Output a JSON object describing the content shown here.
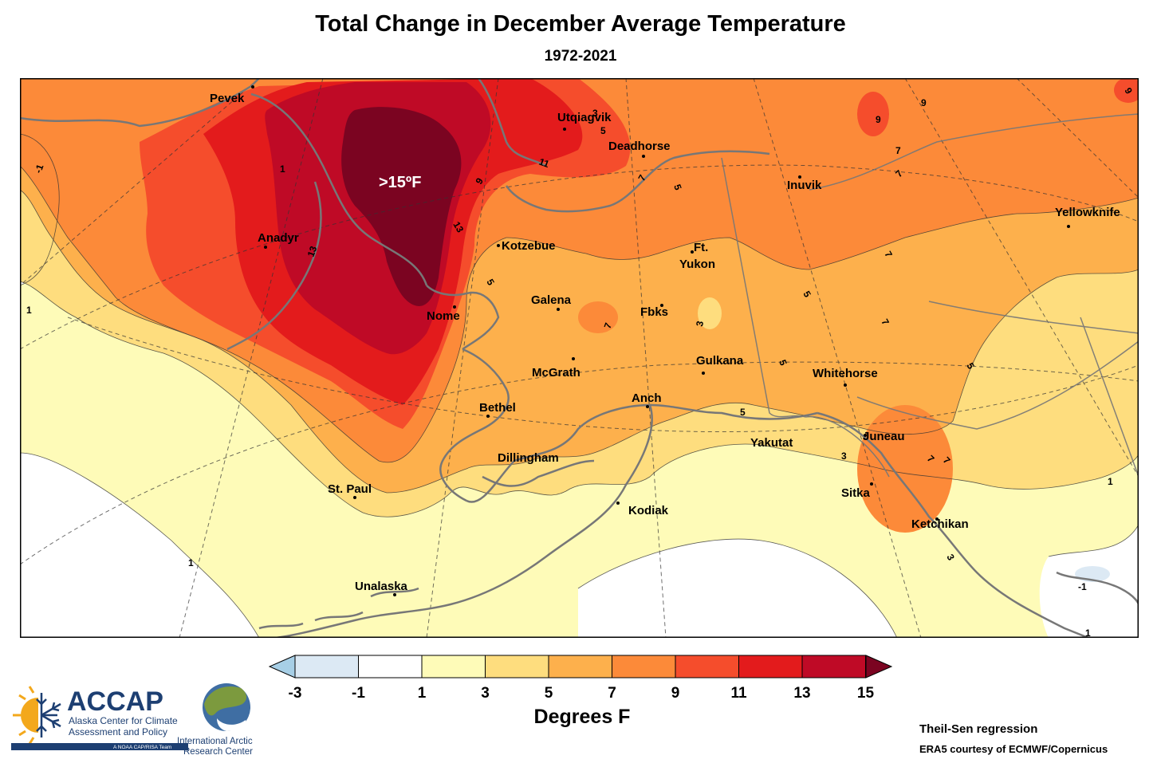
{
  "title": "Total Change in December Average Temperature",
  "subtitle": "1972-2021",
  "peak_label": ">15ºF",
  "cities": [
    {
      "id": "pevek",
      "name": "Pevek"
    },
    {
      "id": "utqiagvik",
      "name": "Utqiagvik"
    },
    {
      "id": "deadhorse",
      "name": "Deadhorse"
    },
    {
      "id": "inuvik",
      "name": "Inuvik"
    },
    {
      "id": "yellowknife",
      "name": "Yellowknife"
    },
    {
      "id": "anadyr",
      "name": "Anadyr"
    },
    {
      "id": "kotzebue",
      "name": "Kotzebue"
    },
    {
      "id": "ft",
      "name": "Ft."
    },
    {
      "id": "yukon",
      "name": "Yukon"
    },
    {
      "id": "galena",
      "name": "Galena"
    },
    {
      "id": "fbks",
      "name": "Fbks"
    },
    {
      "id": "nome",
      "name": "Nome"
    },
    {
      "id": "gulkana",
      "name": "Gulkana"
    },
    {
      "id": "whitehorse",
      "name": "Whitehorse"
    },
    {
      "id": "mcgrath",
      "name": "McGrath"
    },
    {
      "id": "anch",
      "name": "Anch"
    },
    {
      "id": "bethel",
      "name": "Bethel"
    },
    {
      "id": "yakutat",
      "name": "Yakutat"
    },
    {
      "id": "juneau",
      "name": "Juneau"
    },
    {
      "id": "dillingham",
      "name": "Dillingham"
    },
    {
      "id": "stpaul",
      "name": "St. Paul"
    },
    {
      "id": "sitka",
      "name": "Sitka"
    },
    {
      "id": "kodiak",
      "name": "Kodiak"
    },
    {
      "id": "ketchikan",
      "name": "Ketchikan"
    },
    {
      "id": "unalaska",
      "name": "Unalaska"
    }
  ],
  "contour_labels": [
    "-1",
    "1",
    "13",
    "9",
    "13",
    "11",
    "7",
    "5",
    "3",
    "5",
    "7",
    "7",
    "5",
    "5",
    "3",
    "7",
    "5",
    "5",
    "7",
    "5",
    "9",
    "9",
    "7",
    "9",
    "7",
    "7",
    "3",
    "1",
    "1",
    "-1",
    "1",
    "1",
    "3"
  ],
  "legend": {
    "ticks": [
      "-3",
      "-1",
      "1",
      "3",
      "5",
      "7",
      "9",
      "11",
      "13",
      "15"
    ],
    "bin_colors": [
      "#dce9f4",
      "#ffffff",
      "#fefbb8",
      "#fedd7e",
      "#fdb04c",
      "#fc8a39",
      "#f54d2c",
      "#e31b1c",
      "#bf0a26"
    ],
    "under_color": "#a7cfe6",
    "over_color": "#7b0421",
    "units": "Degrees F"
  },
  "logos": {
    "accap_name": "ACCAP",
    "accap_line1": "Alaska Center for Climate",
    "accap_line2": "Assessment and Policy",
    "accap_tag": "A NOAA CAP/RISA Team",
    "iarc_line1": "International Arctic",
    "iarc_line2": "Research Center"
  },
  "credits": {
    "method": "Theil-Sen regression",
    "source": "ERA5 courtesy of ECMWF/Copernicus"
  }
}
